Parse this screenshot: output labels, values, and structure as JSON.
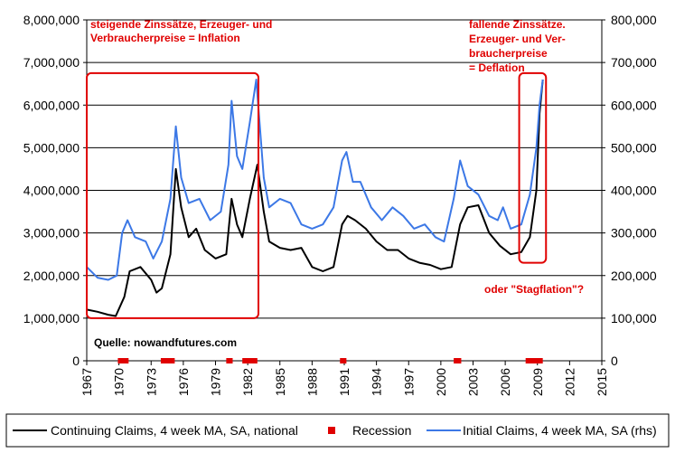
{
  "chart_data": {
    "type": "line",
    "title": "",
    "xlabel": "",
    "ylabel": "",
    "xlim": [
      1967,
      2015
    ],
    "ylim_left": [
      0,
      8000000
    ],
    "ylim_right": [
      0,
      800000
    ],
    "x_ticks": [
      "1967",
      "1970",
      "1973",
      "1976",
      "1979",
      "1982",
      "1985",
      "1988",
      "1991",
      "1994",
      "1997",
      "2000",
      "2003",
      "2006",
      "2009",
      "2012",
      "2015"
    ],
    "y_ticks_left": [
      "0",
      "1,000,000",
      "2,000,000",
      "3,000,000",
      "4,000,000",
      "5,000,000",
      "6,000,000",
      "7,000,000",
      "8,000,000"
    ],
    "y_ticks_right": [
      "0",
      "100,000",
      "200,000",
      "300,000",
      "400,000",
      "500,000",
      "600,000",
      "700,000",
      "800,000"
    ],
    "series": [
      {
        "name": "Continuing Claims, 4 week MA, SA, national",
        "axis": "left",
        "color": "#000000",
        "points": [
          [
            1967.0,
            1200000
          ],
          [
            1968.0,
            1150000
          ],
          [
            1969.0,
            1080000
          ],
          [
            1969.7,
            1050000
          ],
          [
            1970.5,
            1500000
          ],
          [
            1971.0,
            2100000
          ],
          [
            1972.0,
            2200000
          ],
          [
            1973.0,
            1900000
          ],
          [
            1973.5,
            1600000
          ],
          [
            1974.0,
            1700000
          ],
          [
            1974.8,
            2500000
          ],
          [
            1975.3,
            4500000
          ],
          [
            1975.8,
            3600000
          ],
          [
            1976.5,
            2900000
          ],
          [
            1977.2,
            3100000
          ],
          [
            1978.0,
            2600000
          ],
          [
            1979.0,
            2400000
          ],
          [
            1980.0,
            2500000
          ],
          [
            1980.5,
            3800000
          ],
          [
            1981.0,
            3200000
          ],
          [
            1981.5,
            2900000
          ],
          [
            1982.2,
            3800000
          ],
          [
            1982.9,
            4600000
          ],
          [
            1983.5,
            3500000
          ],
          [
            1984.0,
            2800000
          ],
          [
            1985.0,
            2650000
          ],
          [
            1986.0,
            2600000
          ],
          [
            1987.0,
            2650000
          ],
          [
            1988.0,
            2200000
          ],
          [
            1989.0,
            2100000
          ],
          [
            1990.0,
            2200000
          ],
          [
            1990.8,
            3200000
          ],
          [
            1991.3,
            3400000
          ],
          [
            1992.0,
            3300000
          ],
          [
            1993.0,
            3100000
          ],
          [
            1994.0,
            2800000
          ],
          [
            1995.0,
            2600000
          ],
          [
            1996.0,
            2600000
          ],
          [
            1997.0,
            2400000
          ],
          [
            1998.0,
            2300000
          ],
          [
            1999.0,
            2250000
          ],
          [
            2000.0,
            2150000
          ],
          [
            2001.0,
            2200000
          ],
          [
            2001.8,
            3200000
          ],
          [
            2002.5,
            3600000
          ],
          [
            2003.5,
            3650000
          ],
          [
            2004.5,
            3000000
          ],
          [
            2005.5,
            2700000
          ],
          [
            2006.5,
            2500000
          ],
          [
            2007.5,
            2550000
          ],
          [
            2008.3,
            2900000
          ],
          [
            2008.9,
            4000000
          ],
          [
            2009.2,
            5800000
          ],
          [
            2009.5,
            6600000
          ]
        ]
      },
      {
        "name": "Initial Claims, 4 week MA, SA (rhs)",
        "axis": "right",
        "color": "#3c78e6",
        "points": [
          [
            1967.0,
            220000
          ],
          [
            1968.0,
            195000
          ],
          [
            1969.0,
            190000
          ],
          [
            1969.8,
            200000
          ],
          [
            1970.3,
            300000
          ],
          [
            1970.8,
            330000
          ],
          [
            1971.5,
            290000
          ],
          [
            1972.5,
            280000
          ],
          [
            1973.2,
            240000
          ],
          [
            1974.0,
            280000
          ],
          [
            1974.8,
            380000
          ],
          [
            1975.3,
            550000
          ],
          [
            1975.8,
            430000
          ],
          [
            1976.5,
            370000
          ],
          [
            1977.5,
            380000
          ],
          [
            1978.5,
            330000
          ],
          [
            1979.5,
            350000
          ],
          [
            1980.2,
            460000
          ],
          [
            1980.5,
            610000
          ],
          [
            1981.0,
            480000
          ],
          [
            1981.5,
            450000
          ],
          [
            1982.2,
            560000
          ],
          [
            1982.8,
            660000
          ],
          [
            1983.5,
            430000
          ],
          [
            1984.0,
            360000
          ],
          [
            1985.0,
            380000
          ],
          [
            1986.0,
            370000
          ],
          [
            1987.0,
            320000
          ],
          [
            1988.0,
            310000
          ],
          [
            1989.0,
            320000
          ],
          [
            1990.0,
            360000
          ],
          [
            1990.8,
            470000
          ],
          [
            1991.2,
            490000
          ],
          [
            1991.8,
            420000
          ],
          [
            1992.5,
            420000
          ],
          [
            1993.5,
            360000
          ],
          [
            1994.5,
            330000
          ],
          [
            1995.5,
            360000
          ],
          [
            1996.5,
            340000
          ],
          [
            1997.5,
            310000
          ],
          [
            1998.5,
            320000
          ],
          [
            1999.5,
            290000
          ],
          [
            2000.3,
            280000
          ],
          [
            2001.2,
            380000
          ],
          [
            2001.8,
            470000
          ],
          [
            2002.5,
            410000
          ],
          [
            2003.5,
            390000
          ],
          [
            2004.5,
            340000
          ],
          [
            2005.3,
            330000
          ],
          [
            2005.8,
            360000
          ],
          [
            2006.5,
            310000
          ],
          [
            2007.5,
            320000
          ],
          [
            2008.3,
            390000
          ],
          [
            2008.9,
            500000
          ],
          [
            2009.2,
            600000
          ],
          [
            2009.5,
            660000
          ]
        ]
      },
      {
        "name": "Recession",
        "type": "periods",
        "color": "#e00000",
        "periods": [
          [
            1969.9,
            1970.9
          ],
          [
            1973.9,
            1975.2
          ],
          [
            1980.0,
            1980.6
          ],
          [
            1981.5,
            1982.9
          ],
          [
            1990.6,
            1991.2
          ],
          [
            2001.2,
            2001.9
          ],
          [
            2007.9,
            2009.5
          ]
        ]
      }
    ],
    "legend": {
      "position": "bottom",
      "entries": [
        "Continuing Claims, 4 week MA, SA, national",
        "Recession",
        "Initial Claims, 4 week MA, SA (rhs)"
      ]
    },
    "annotations": [
      {
        "id": "inflation",
        "lines": [
          "steigende Zinssätze, Erzeuger- und",
          "Verbraucherpreise = Inflation"
        ]
      },
      {
        "id": "deflation",
        "lines": [
          "fallende Zinssätze.",
          "Erzeuger- und Ver-",
          "braucherpreise",
          "= Deflation"
        ]
      },
      {
        "id": "stagflation",
        "lines": [
          "oder \"Stagflation\"?"
        ]
      },
      {
        "id": "source",
        "lines": [
          "Quelle: nowandfutures.com"
        ]
      }
    ],
    "highlight_boxes": [
      {
        "id": "inflation-box",
        "x_range": [
          1967.0,
          1983.0
        ],
        "y_range_left": [
          1000000,
          6750000
        ]
      },
      {
        "id": "deflation-box",
        "x_range": [
          2007.3,
          2009.8
        ],
        "y_range_left": [
          2300000,
          6750000
        ]
      }
    ],
    "grid": true,
    "colors": {
      "grid": "#000000",
      "annotation": "#e00000"
    }
  }
}
